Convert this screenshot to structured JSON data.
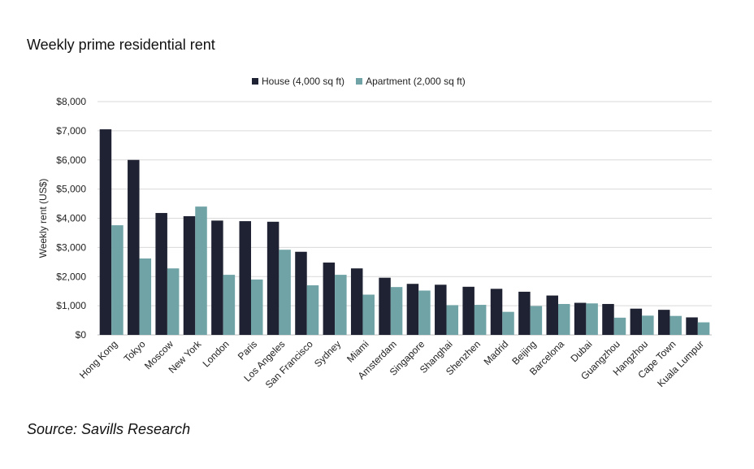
{
  "title": "Weekly prime residential rent",
  "source": "Source: Savills Research",
  "colors": {
    "house": "#1f2232",
    "apartment": "#6fa3a6",
    "grid": "#d9d9d9"
  },
  "chart_data": {
    "type": "bar",
    "title": "Weekly prime residential rent",
    "ylabel": "Weekly rent (US$)",
    "xlabel": "",
    "ylim": [
      0,
      8000
    ],
    "yticks": [
      0,
      1000,
      2000,
      3000,
      4000,
      5000,
      6000,
      7000,
      8000
    ],
    "ytick_labels": [
      "$0",
      "$1,000",
      "$2,000",
      "$3,000",
      "$4,000",
      "$5,000",
      "$6,000",
      "$7,000",
      "$8,000"
    ],
    "grid": true,
    "legend_position": "top",
    "categories": [
      "Hong Kong",
      "Tokyo",
      "Moscow",
      "New York",
      "London",
      "Paris",
      "Los Angeles",
      "San Francisco",
      "Sydney",
      "Miami",
      "Amsterdam",
      "Singapore",
      "Shanghai",
      "Shenzhen",
      "Madrid",
      "Beijing",
      "Barcelona",
      "Dubai",
      "Guangzhou",
      "Hangzhou",
      "Cape Town",
      "Kuala Lumpur"
    ],
    "series": [
      {
        "name": "House (4,000 sq ft)",
        "values": [
          7050,
          6000,
          4180,
          4070,
          3920,
          3900,
          3880,
          2850,
          2480,
          2280,
          1960,
          1750,
          1720,
          1650,
          1580,
          1480,
          1350,
          1100,
          1060,
          900,
          860,
          600
        ]
      },
      {
        "name": "Apartment (2,000 sq ft)",
        "values": [
          3760,
          2620,
          2280,
          4400,
          2060,
          1900,
          2920,
          1700,
          2060,
          1380,
          1640,
          1520,
          1020,
          1030,
          790,
          990,
          1060,
          1080,
          590,
          660,
          650,
          430
        ]
      }
    ]
  }
}
